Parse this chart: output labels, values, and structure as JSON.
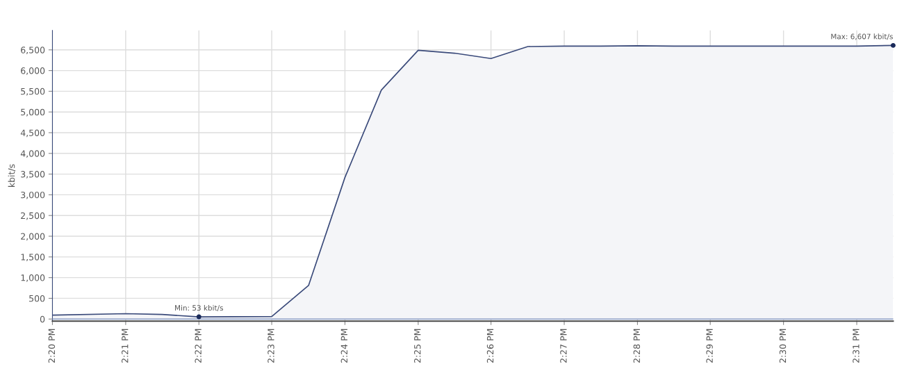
{
  "chart_data": {
    "type": "area",
    "ylabel": "kbit/s",
    "x": [
      14.3333,
      14.35,
      14.3583,
      14.3667,
      14.375,
      14.3833,
      14.3917,
      14.4,
      14.4083,
      14.4167,
      14.425,
      14.4333,
      14.4417,
      14.45,
      14.4583,
      14.4667,
      14.475,
      14.4833,
      14.4917,
      14.5,
      14.5083,
      14.5167,
      14.525
    ],
    "series": [
      {
        "color": "#3a4a7a",
        "values": [
          95,
          130,
          110,
          53,
          55,
          60,
          810,
          3420,
          5530,
          6490,
          6420,
          6290,
          6580,
          6590,
          6590,
          6600,
          6590,
          6590,
          6590,
          6590,
          6590,
          6590,
          6607
        ]
      },
      {
        "type": "line",
        "color": "#8a9cc4",
        "values": [
          0,
          0,
          0,
          0,
          0,
          0,
          0,
          0,
          0,
          0,
          0,
          0,
          0,
          0,
          0,
          0,
          0,
          0,
          0,
          0,
          0,
          0,
          0
        ]
      }
    ],
    "xlim": [
      14.3333,
      14.525
    ],
    "xticks": [
      {
        "value": 14.3333,
        "label": "2:20 PM"
      },
      {
        "value": 14.35,
        "label": "2:21 PM"
      },
      {
        "value": 14.3667,
        "label": "2:22 PM"
      },
      {
        "value": 14.3833,
        "label": "2:23 PM"
      },
      {
        "value": 14.4,
        "label": "2:24 PM"
      },
      {
        "value": 14.4167,
        "label": "2:25 PM"
      },
      {
        "value": 14.4333,
        "label": "2:26 PM"
      },
      {
        "value": 14.45,
        "label": "2:27 PM"
      },
      {
        "value": 14.4667,
        "label": "2:28 PM"
      },
      {
        "value": 14.4833,
        "label": "2:29 PM"
      },
      {
        "value": 14.5,
        "label": "2:30 PM"
      },
      {
        "value": 14.5167,
        "label": "2:31 PM"
      }
    ],
    "ylim": [
      -50,
      6970
    ],
    "yticks": [
      0,
      {
        "value": 500,
        "label": "500"
      },
      {
        "value": 1000,
        "label": "1,000"
      },
      {
        "value": 1500,
        "label": "1,500"
      },
      {
        "value": 2000,
        "label": "2,000"
      },
      {
        "value": 2500,
        "label": "2,500"
      },
      {
        "value": 3000,
        "label": "3,000"
      },
      {
        "value": 3500,
        "label": "3,500"
      },
      {
        "value": 4000,
        "label": "4,000"
      },
      {
        "value": 4500,
        "label": "4,500"
      },
      {
        "value": 5000,
        "label": "5,000"
      },
      {
        "value": 5500,
        "label": "5,500"
      },
      {
        "value": 6000,
        "label": "6,000"
      },
      {
        "value": 6500,
        "label": "6,500"
      }
    ],
    "annotations": [
      {
        "text": "Min: 53 kbit/s",
        "x": 14.3667,
        "y": 53
      },
      {
        "text": "Max: 6,607 kbit/s",
        "x": 14.525,
        "y": 6607
      }
    ],
    "grid": true,
    "legend": false,
    "marker": "none",
    "line_style": "solid"
  }
}
